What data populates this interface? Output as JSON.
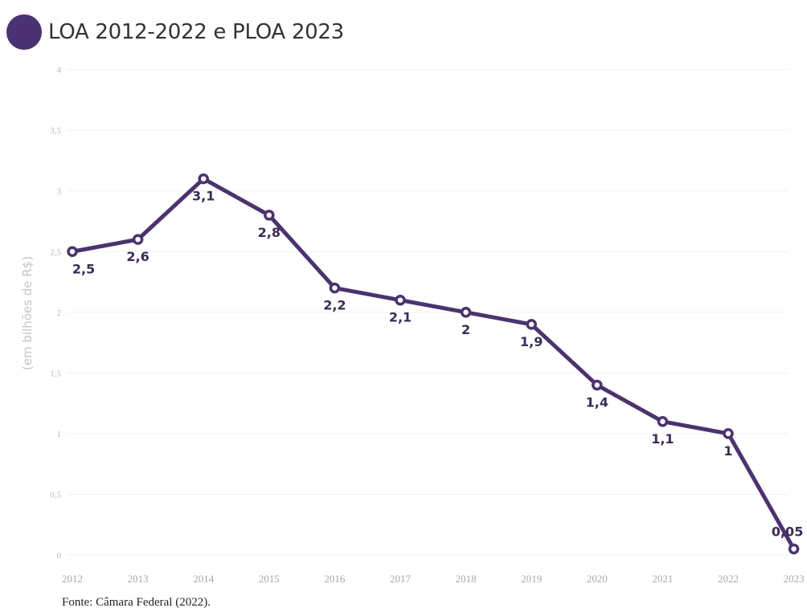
{
  "legend": {
    "label": "LOA 2012-2022 e PLOA 2023",
    "color": "#4b3272"
  },
  "source": "Fonte: Câmara Federal (2022).",
  "chart_data": {
    "type": "line",
    "title": "",
    "xlabel": "",
    "ylabel": "(em bilhões de R$)",
    "x": [
      "2012",
      "2013",
      "2014",
      "2015",
      "2016",
      "2017",
      "2018",
      "2019",
      "2020",
      "2021",
      "2022",
      "2023"
    ],
    "series": [
      {
        "name": "LOA 2012-2022 e PLOA 2023",
        "values": [
          2.5,
          2.6,
          3.1,
          2.8,
          2.2,
          2.1,
          2.0,
          1.9,
          1.4,
          1.1,
          1.0,
          0.05
        ],
        "labels": [
          "2,5",
          "2,6",
          "3,1",
          "2,8",
          "2,2",
          "2,1",
          "2",
          "1,9",
          "1,4",
          "1,1",
          "1",
          "0,05"
        ]
      }
    ],
    "yticks": [
      "0",
      "0,5",
      "1",
      "1,5",
      "2",
      "2,5",
      "3",
      "3,5",
      "4"
    ],
    "ylim": [
      0,
      4
    ],
    "grid": true,
    "line_color": "#4b3272"
  }
}
